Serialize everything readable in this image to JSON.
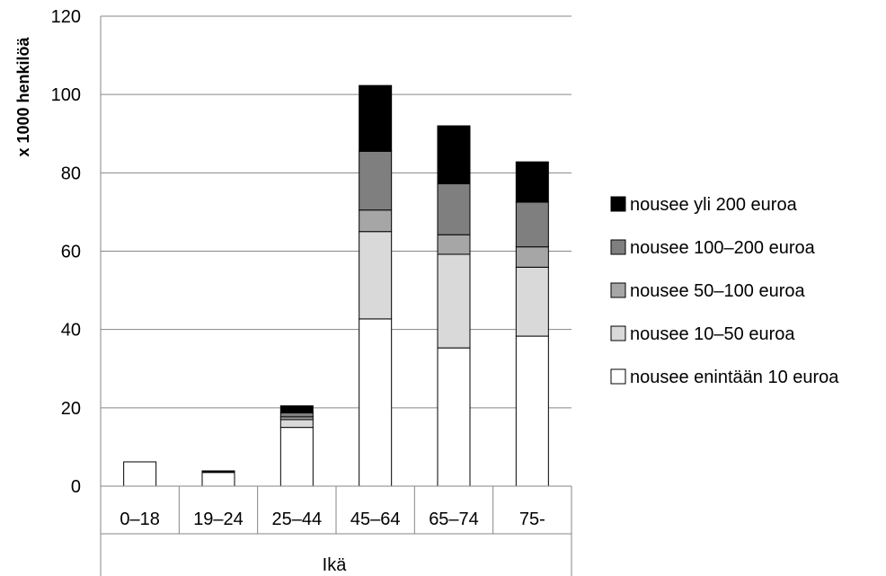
{
  "chart_data": {
    "type": "bar",
    "stacked": true,
    "categories": [
      "0–18",
      "19–24",
      "25–44",
      "45–64",
      "65–74",
      "75-"
    ],
    "xlabel": "Ikä",
    "ylabel": "x 1000 henkilöä",
    "ylim": [
      0,
      120
    ],
    "yticks": [
      0,
      20,
      40,
      60,
      80,
      100,
      120
    ],
    "grid": true,
    "legend": "right",
    "series": [
      {
        "name": "nousee enintään 10 euroa",
        "color": "#ffffff",
        "values": [
          6.2,
          3.5,
          15.0,
          42.7,
          35.3,
          38.3
        ]
      },
      {
        "name": "nousee 10–50 euroa",
        "color": "#d9d9d9",
        "values": [
          0,
          0.2,
          2.0,
          22.3,
          23.9,
          17.6
        ]
      },
      {
        "name": "nousee 50–100 euroa",
        "color": "#a6a6a6",
        "values": [
          0,
          0.05,
          0.7,
          5.5,
          5.0,
          5.2
        ]
      },
      {
        "name": "nousee 100–200 euroa",
        "color": "#7f7f7f",
        "values": [
          0,
          0.05,
          1.0,
          15.0,
          13.0,
          11.4
        ]
      },
      {
        "name": "nousee yli 200 euroa",
        "color": "#000000",
        "values": [
          0,
          0.1,
          1.8,
          16.8,
          14.8,
          10.3
        ]
      }
    ]
  }
}
